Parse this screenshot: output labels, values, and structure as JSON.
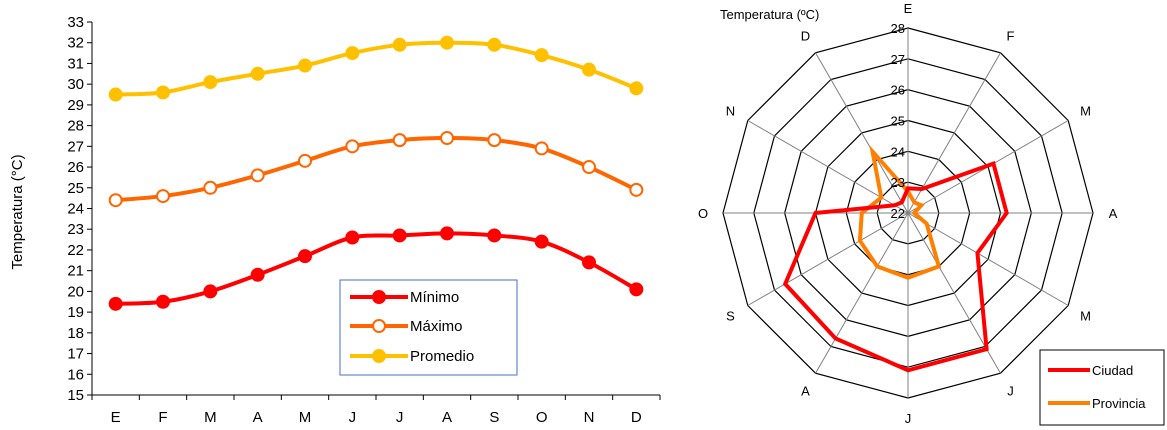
{
  "chart_data": [
    {
      "type": "line",
      "ylabel": "Temperatura (°C)",
      "ylim": [
        15,
        33
      ],
      "yticks": [
        "15",
        "16",
        "17",
        "18",
        "19",
        "20",
        "21",
        "22",
        "23",
        "24",
        "25",
        "26",
        "27",
        "28",
        "29",
        "30",
        "31",
        "32",
        "33"
      ],
      "categories": [
        "E",
        "F",
        "M",
        "A",
        "M",
        "J",
        "J",
        "A",
        "S",
        "O",
        "N",
        "D"
      ],
      "series": [
        {
          "name": "Mínimo",
          "color": "#ff0000",
          "marker": "filled",
          "values": [
            19.4,
            19.5,
            20.0,
            20.8,
            21.7,
            22.6,
            22.7,
            22.8,
            22.7,
            22.4,
            21.4,
            20.1
          ]
        },
        {
          "name": "Máximo",
          "color": "#ff6600",
          "marker": "hollow",
          "values": [
            24.4,
            24.6,
            25.0,
            25.6,
            26.3,
            27.0,
            27.3,
            27.4,
            27.3,
            26.9,
            26.0,
            24.9
          ]
        },
        {
          "name": "Promedio",
          "color": "#ffc000",
          "marker": "filled",
          "values": [
            29.5,
            29.6,
            30.1,
            30.5,
            30.9,
            31.5,
            31.9,
            32.0,
            31.9,
            31.4,
            30.7,
            29.8
          ]
        }
      ],
      "legend": "inside-bottom-center",
      "grid": false
    },
    {
      "type": "radar",
      "title": "Temperatura (ºC)",
      "rlim": [
        22,
        28
      ],
      "rticks": [
        "22",
        "23",
        "24",
        "25",
        "26",
        "27",
        "28"
      ],
      "categories": [
        "E",
        "F",
        "M",
        "A",
        "M",
        "J",
        "J",
        "A",
        "S",
        "O",
        "N",
        "D"
      ],
      "series": [
        {
          "name": "Ciudad",
          "color": "#ff0000",
          "values": [
            22.8,
            22.9,
            25.2,
            25.2,
            24.6,
            27.1,
            27.1,
            26.7,
            26.6,
            25.0,
            22.5,
            22.4
          ]
        },
        {
          "name": "Provincia",
          "color": "#ff7f00",
          "values": [
            22.7,
            22.4,
            22.5,
            22.2,
            22.7,
            24.0,
            24.1,
            24.0,
            23.8,
            23.5,
            23.0,
            24.3
          ]
        }
      ],
      "legend": "bottom-right"
    }
  ]
}
